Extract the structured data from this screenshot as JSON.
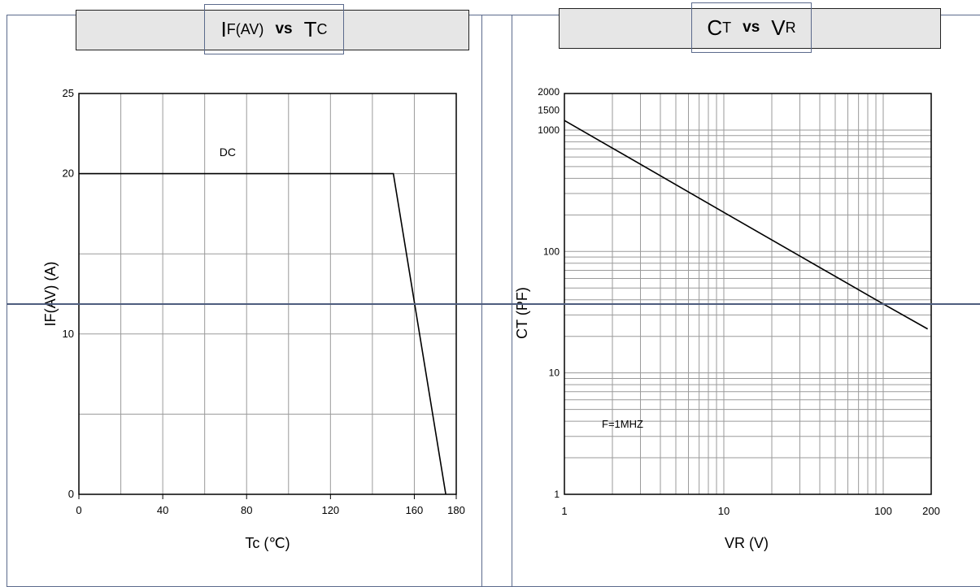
{
  "colors": {
    "frame": "#5b6a8c",
    "title_bg": "#e6e6e6",
    "grid": "#9a9a9a",
    "curve": "#000000"
  },
  "chart_data": [
    {
      "type": "line",
      "title": {
        "main": "I",
        "sub": "F(AV)",
        "vs": "vs",
        "main2": "T",
        "sub2": "C"
      },
      "xlabel": "Tc (℃)",
      "ylabel": "IF(AV) (A)",
      "xlim": [
        0,
        180
      ],
      "ylim": [
        0,
        25
      ],
      "x_ticks": [
        "0",
        "40",
        "80",
        "120",
        "160",
        "180"
      ],
      "x_tick_values": [
        0,
        40,
        80,
        120,
        160,
        180
      ],
      "y_ticks": [
        "0",
        "10",
        "20",
        "25"
      ],
      "y_tick_values": [
        0,
        10,
        20,
        25
      ],
      "grid": true,
      "series": [
        {
          "name": "DC",
          "x": [
            0,
            150,
            175
          ],
          "y": [
            20,
            20,
            0
          ]
        }
      ]
    },
    {
      "type": "line",
      "title": {
        "main": "C",
        "sub": "T",
        "vs": "vs",
        "main2": "V",
        "sub2": "R"
      },
      "xlabel": "VR (V)",
      "ylabel": "CT (PF)",
      "xscale": "log",
      "yscale": "log",
      "xlim": [
        1,
        200
      ],
      "ylim": [
        1,
        2000
      ],
      "x_ticks": [
        "1",
        "10",
        "100",
        "200"
      ],
      "x_tick_values": [
        1,
        10,
        100,
        200
      ],
      "y_ticks": [
        "1",
        "10",
        "100",
        "1000",
        "1500",
        "2000"
      ],
      "y_tick_values": [
        1,
        10,
        100,
        1000,
        1500,
        2000
      ],
      "grid": true,
      "annotation": "F=1MHZ",
      "series": [
        {
          "name": "",
          "x": [
            1,
            10,
            100,
            190
          ],
          "y": [
            1200,
            210,
            37,
            23
          ]
        }
      ]
    }
  ]
}
